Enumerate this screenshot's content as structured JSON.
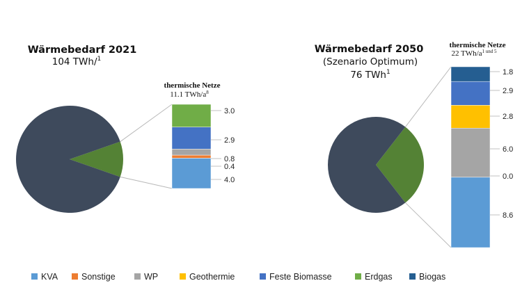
{
  "legend": [
    {
      "label": "KVA",
      "color": "#5b9bd5"
    },
    {
      "label": "Sonstige",
      "color": "#ed7d31"
    },
    {
      "label": "WP",
      "color": "#a5a5a5"
    },
    {
      "label": "Geothermie",
      "color": "#ffc000"
    },
    {
      "label": "Feste Biomasse",
      "color": "#4472c4"
    },
    {
      "label": "Erdgas",
      "color": "#70ad47"
    },
    {
      "label": "Biogas",
      "color": "#255e91"
    }
  ],
  "chart_data": [
    {
      "type": "bar-of-pie",
      "title": "Wärmebedarf 2021",
      "subtitle_lines": [
        {
          "text": "104 TWh/",
          "sup": "1"
        }
      ],
      "pie": {
        "total": 104,
        "slices": [
          {
            "name": "thermische Netze",
            "value": 11.1,
            "color": "#548235",
            "exploded": true
          },
          {
            "name": "",
            "value": 92.9,
            "color": "#3e4a5c"
          }
        ]
      },
      "stack": {
        "title": "thermische Netze",
        "subtitle": "11.1 TWh/a",
        "subtitle_sup": "8",
        "segments": [
          {
            "category": "KVA",
            "value": 4.0,
            "label": "4.0",
            "color": "#5b9bd5"
          },
          {
            "category": "Sonstige",
            "value": 0.4,
            "label": "0.4",
            "color": "#ed7d31"
          },
          {
            "category": "WP",
            "value": 0.8,
            "label": "0.8",
            "color": "#a5a5a5"
          },
          {
            "category": "Feste Biomasse",
            "value": 2.9,
            "label": "2.9",
            "color": "#4472c4"
          },
          {
            "category": "Erdgas",
            "value": 3.0,
            "label": "3.0",
            "color": "#70ad47"
          }
        ]
      }
    },
    {
      "type": "bar-of-pie",
      "title": "Wärmebedarf 2050",
      "subtitle_lines": [
        {
          "text": "(Szenario Optimum)",
          "sup": ""
        },
        {
          "text": "76 TWh",
          "sup": "1"
        }
      ],
      "pie": {
        "total": 76,
        "slices": [
          {
            "name": "thermische Netze",
            "value": 22,
            "color": "#548235",
            "exploded": true
          },
          {
            "name": "",
            "value": 54,
            "color": "#3e4a5c"
          }
        ]
      },
      "stack": {
        "title": "thermische Netze",
        "subtitle": "22 TWh/a",
        "subtitle_sup": "1 und 5",
        "segments": [
          {
            "category": "KVA",
            "value": 8.6,
            "label": "8.6",
            "color": "#5b9bd5"
          },
          {
            "category": "Sonstige",
            "value": 0.0,
            "label": "0.0",
            "color": "#ed7d31"
          },
          {
            "category": "WP",
            "value": 6.0,
            "label": "6.0",
            "color": "#a5a5a5"
          },
          {
            "category": "Geothermie",
            "value": 2.8,
            "label": "2.8",
            "color": "#ffc000"
          },
          {
            "category": "Feste Biomasse",
            "value": 2.9,
            "label": "2.9",
            "color": "#4472c4"
          },
          {
            "category": "Biogas",
            "value": 1.8,
            "label": "1.8",
            "color": "#255e91"
          }
        ]
      }
    }
  ]
}
